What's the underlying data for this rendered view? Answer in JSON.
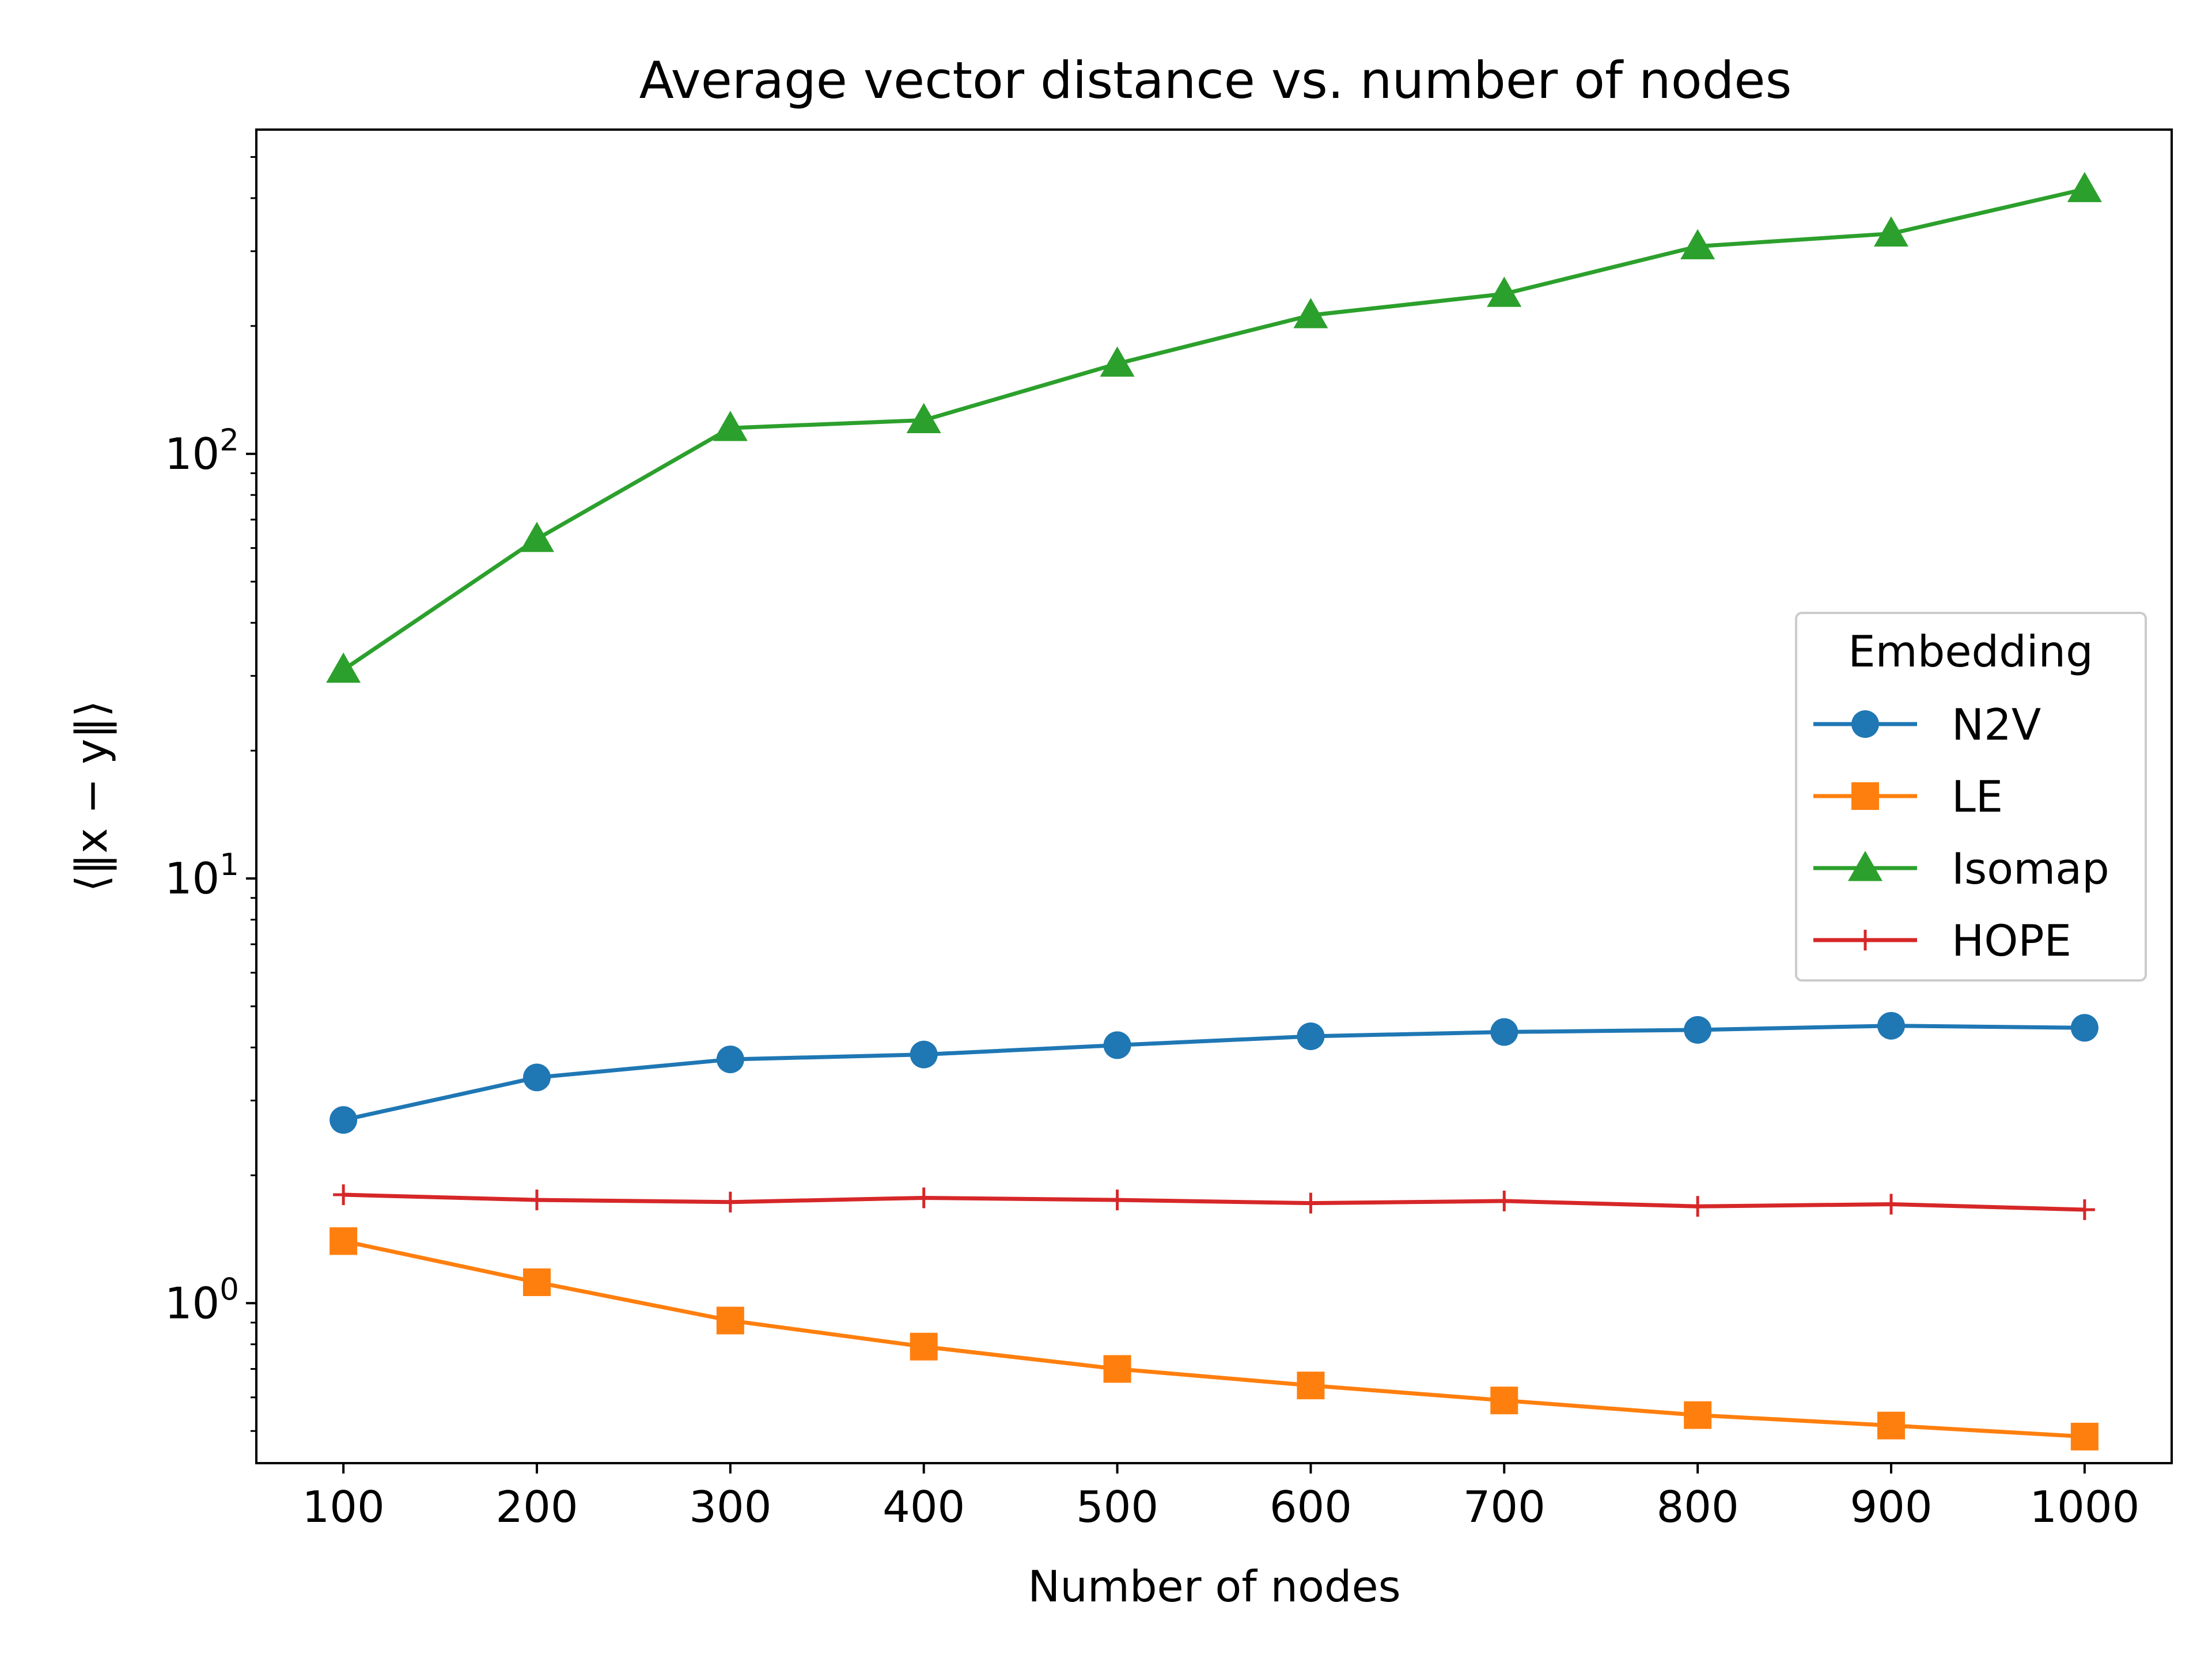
{
  "chart_data": {
    "type": "line",
    "title": "Average vector distance vs. number of nodes",
    "xlabel": "Number of nodes",
    "ylabel": "⟨‖x − y‖⟩",
    "x": [
      100,
      200,
      300,
      400,
      500,
      600,
      700,
      800,
      900,
      1000
    ],
    "xticks": [
      "100",
      "200",
      "300",
      "400",
      "500",
      "600",
      "700",
      "800",
      "900",
      "1000"
    ],
    "xlim": [
      55,
      1045
    ],
    "yscale": "log",
    "ylim": [
      0.42,
      580
    ],
    "yticks": [
      {
        "value": 1,
        "base": "10",
        "exp": "0"
      },
      {
        "value": 10,
        "base": "10",
        "exp": "1"
      },
      {
        "value": 100,
        "base": "10",
        "exp": "2"
      }
    ],
    "grid": false,
    "legend": {
      "title": "Embedding",
      "placement": "center-right"
    },
    "series": [
      {
        "name": "N2V",
        "color": "#1f77b4",
        "marker": "circle",
        "values": [
          2.7,
          3.4,
          3.75,
          3.85,
          4.05,
          4.25,
          4.35,
          4.4,
          4.5,
          4.45
        ]
      },
      {
        "name": "LE",
        "color": "#ff7f0e",
        "marker": "square",
        "values": [
          1.4,
          1.12,
          0.91,
          0.79,
          0.7,
          0.64,
          0.59,
          0.545,
          0.515,
          0.485
        ]
      },
      {
        "name": "Isomap",
        "color": "#2ca02c",
        "marker": "triangle",
        "values": [
          31,
          63,
          115,
          120,
          163,
          212,
          238,
          308,
          330,
          420
        ]
      },
      {
        "name": "HOPE",
        "color": "#d62728",
        "marker": "plus",
        "values": [
          1.8,
          1.75,
          1.73,
          1.77,
          1.75,
          1.72,
          1.74,
          1.69,
          1.71,
          1.66
        ]
      }
    ]
  }
}
